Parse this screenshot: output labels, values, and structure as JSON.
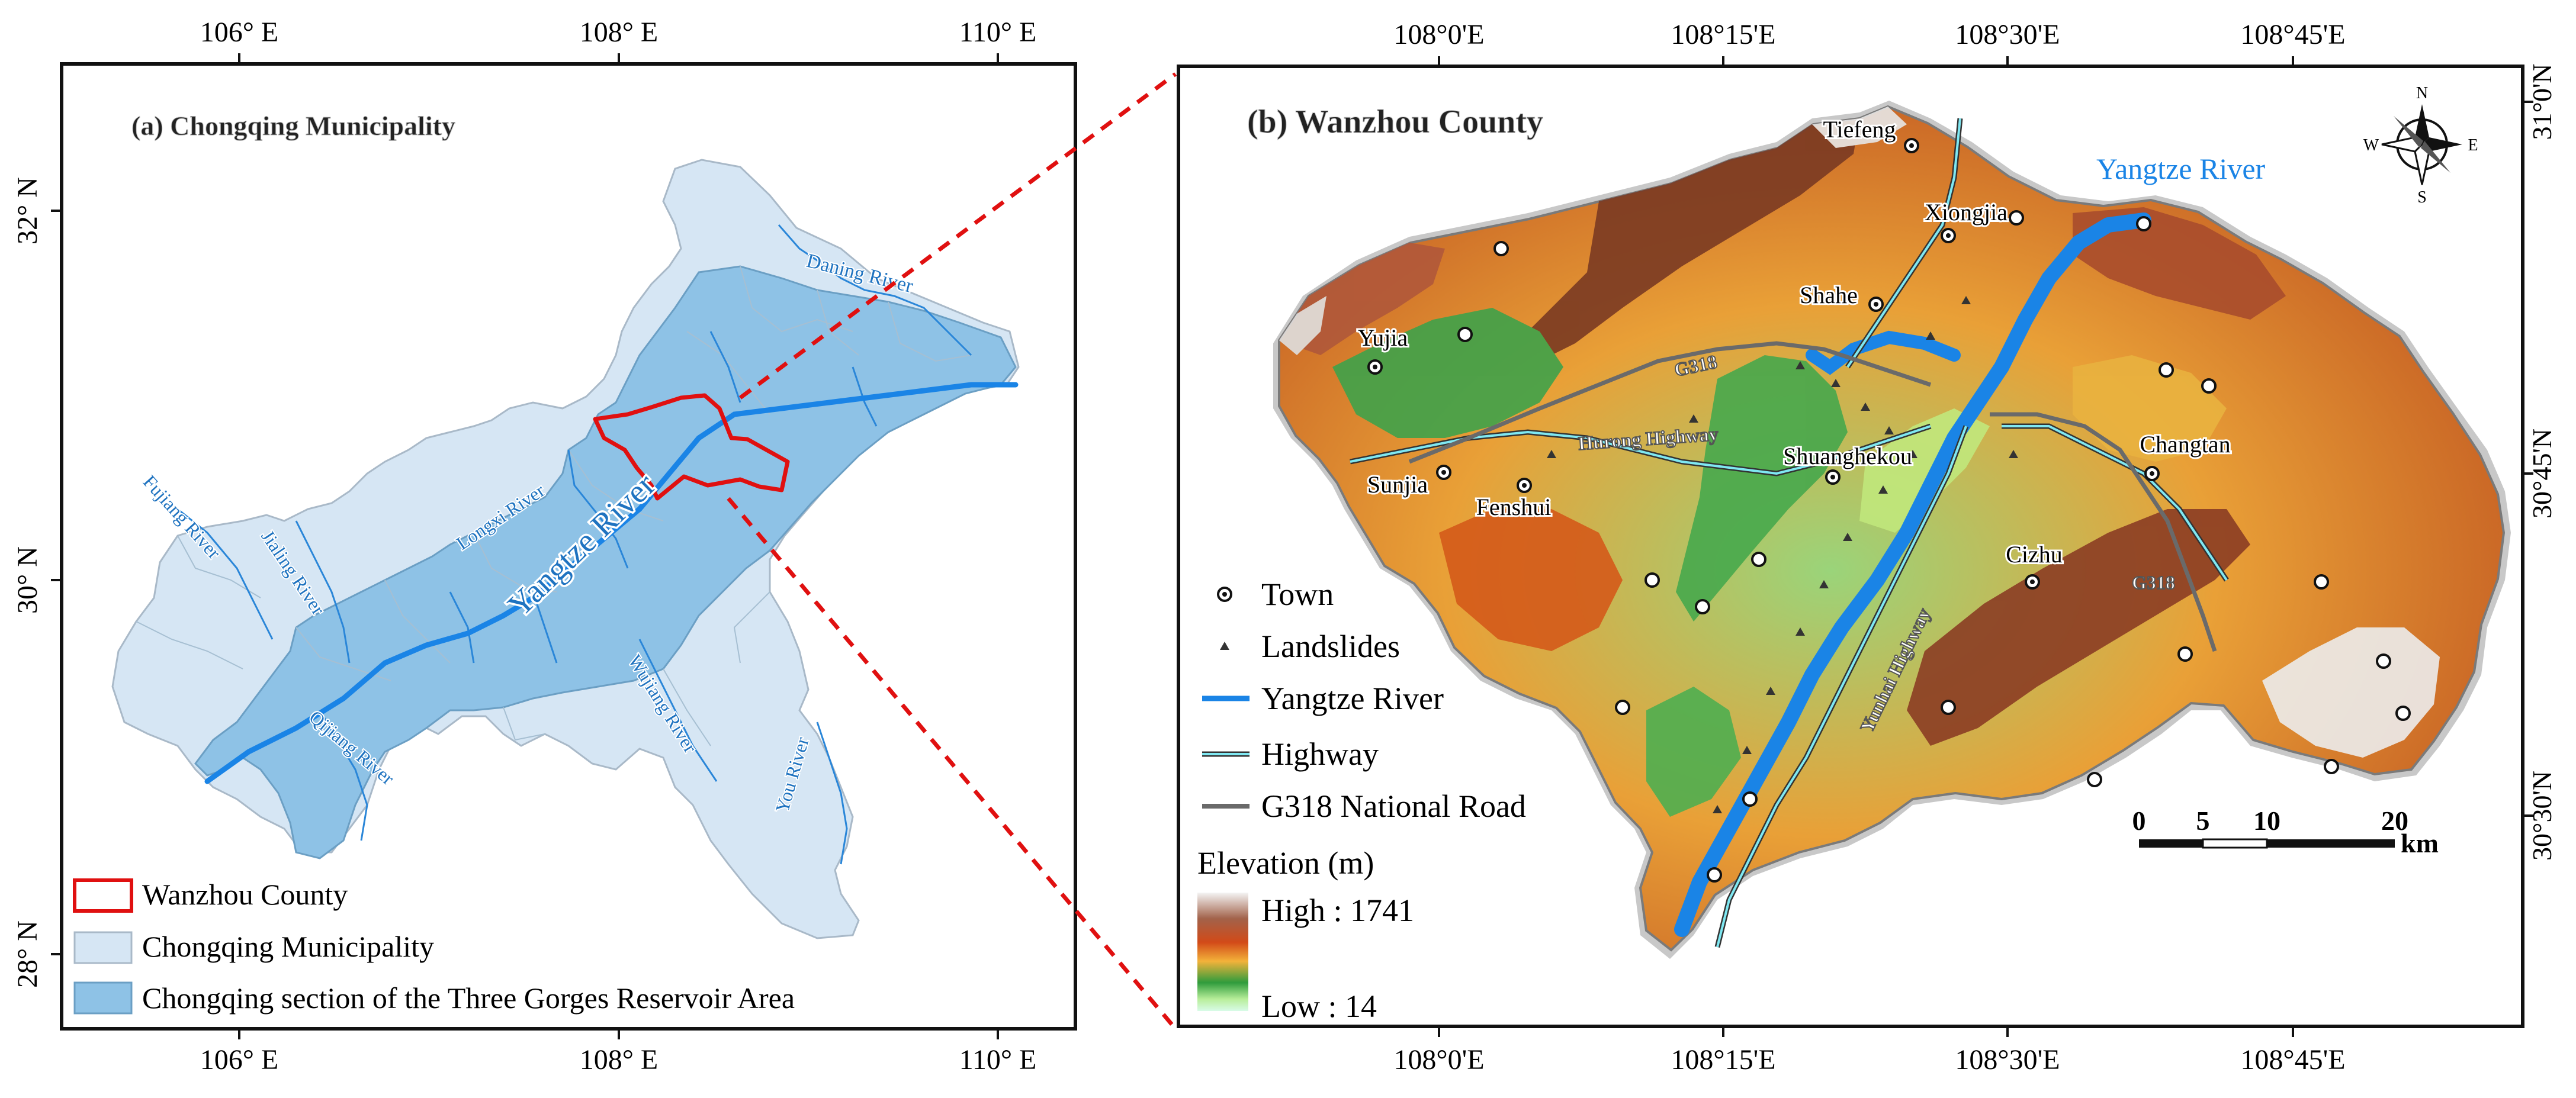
{
  "panel_a": {
    "title": "(a) Chongqing Municipality",
    "lon_ticks_top": [
      "106° E",
      "108° E",
      "110° E"
    ],
    "lon_ticks_bottom": [
      "106° E",
      "108° E",
      "110° E"
    ],
    "lat_ticks": [
      "32° N",
      "30° N",
      "28° N"
    ],
    "rivers": {
      "daning": "Daning River",
      "longxi": "Longxi River",
      "fujiang": "Fujiang River",
      "jialing": "Jialing River",
      "qijiang": "Qijiang River",
      "wujiang": "Wujiang River",
      "you": "You River",
      "yangtze": "Yangtze River"
    },
    "legend": {
      "wanzhou": "Wanzhou County",
      "chongqing": "Chongqing Municipality",
      "tgra": "Chongqing section of the Three Gorges Reservoir Area"
    }
  },
  "panel_b": {
    "title": "(b) Wanzhou County",
    "lon_ticks_top": [
      "108°0'E",
      "108°15'E",
      "108°30'E",
      "108°45'E"
    ],
    "lon_ticks_bottom": [
      "108°0'E",
      "108°15'E",
      "108°30'E",
      "108°45'E"
    ],
    "lat_ticks": [
      "31°0'N",
      "30°45'N",
      "30°30'N"
    ],
    "yangtze_label": "Yangtze River",
    "roads": {
      "g318_a": "G318",
      "g318_b": "G318",
      "hurong": "Hurong Highway",
      "yunhai": "Yunhai Highway"
    },
    "towns": {
      "tiefeng": "Tiefeng",
      "xiongjia": "Xiongjia",
      "shahe": "Shahe",
      "yujia": "Yujia",
      "shuanghekou": "Shuanghekou",
      "changtan": "Changtan",
      "sunjia": "Sunjia",
      "fenshui": "Fenshui",
      "cizhu": "Cizhu"
    },
    "compass": {
      "n": "N",
      "s": "S",
      "e": "E",
      "w": "W"
    },
    "legend": {
      "town": "Town",
      "landslides": "Landslides",
      "yangtze": "Yangtze River",
      "highway": "Highway",
      "g318": "G318 National Road",
      "elevation_title": "Elevation (m)",
      "high": "High : 1741",
      "low": "Low : 14"
    },
    "scale": {
      "ticks": [
        "0",
        "5",
        "10",
        "20"
      ],
      "unit": "km"
    }
  },
  "colors": {
    "yangtze": "#1a84e6",
    "river": "#2a86d8",
    "wanzhou_outline": "#e01010",
    "chongqing_fill": "#d6e6f4",
    "tgra_fill": "#8ec2e6",
    "connector": "#e01010"
  }
}
